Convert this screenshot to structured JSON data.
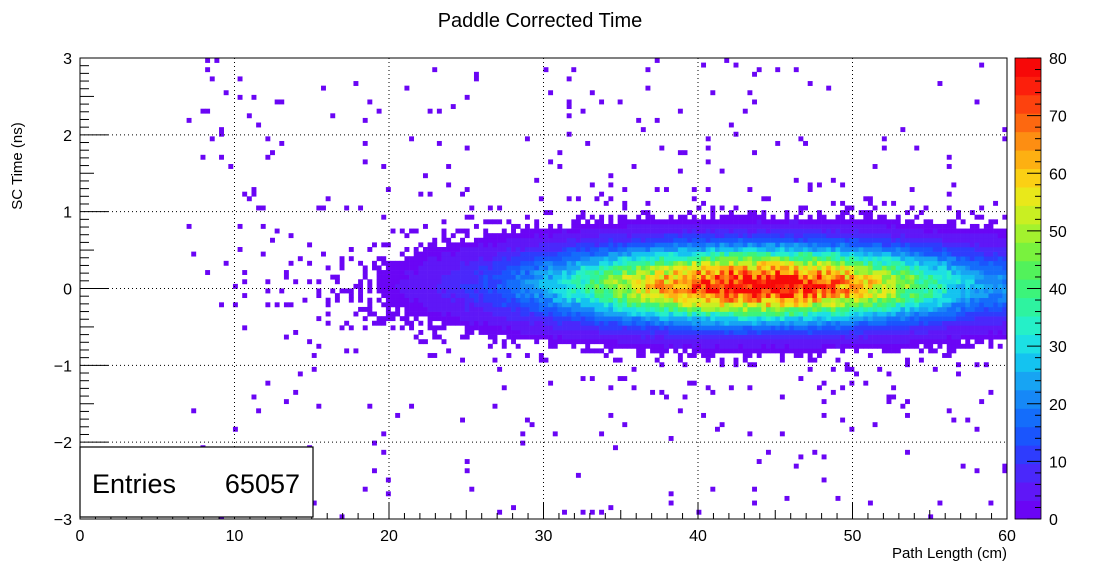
{
  "chart_data": {
    "type": "heatmap",
    "title": "Paddle Corrected Time",
    "xlabel": "Path Length (cm)",
    "ylabel": "SC Time (ns)",
    "xlim": [
      0,
      60
    ],
    "ylim": [
      -3,
      3
    ],
    "x_ticks": [
      "0",
      "10",
      "20",
      "30",
      "40",
      "50",
      "60"
    ],
    "y_ticks": [
      "−3",
      "−2",
      "−1",
      "0",
      "1",
      "2",
      "3"
    ],
    "grid": true,
    "grid_style": "dotted",
    "colorbar": {
      "range": [
        0,
        80
      ],
      "ticks": [
        "0",
        "10",
        "20",
        "30",
        "40",
        "50",
        "60",
        "70",
        "80"
      ],
      "palette": [
        "#6a05f5",
        "#5f17f7",
        "#4a28fb",
        "#2e3cfd",
        "#1a55fd",
        "#146dfb",
        "#1688f7",
        "#17a4f3",
        "#14c3f0",
        "#1ce0e4",
        "#25f0c8",
        "#2ef3a0",
        "#3cf47a",
        "#52f25b",
        "#79f23e",
        "#a3f22e",
        "#c9ef22",
        "#e9e81a",
        "#fbd014",
        "#fdb012",
        "#fd8e12",
        "#fd6810",
        "#fd420e",
        "#fc1f0c",
        "#f70808"
      ]
    },
    "distribution": {
      "x_peak": 44,
      "y_peak": 0.05,
      "peak_value": 78,
      "x_min": 10,
      "x_max": 60,
      "y_sigma_core": 0.32
    },
    "stats": {
      "label": "Entries",
      "value": "65057"
    }
  }
}
